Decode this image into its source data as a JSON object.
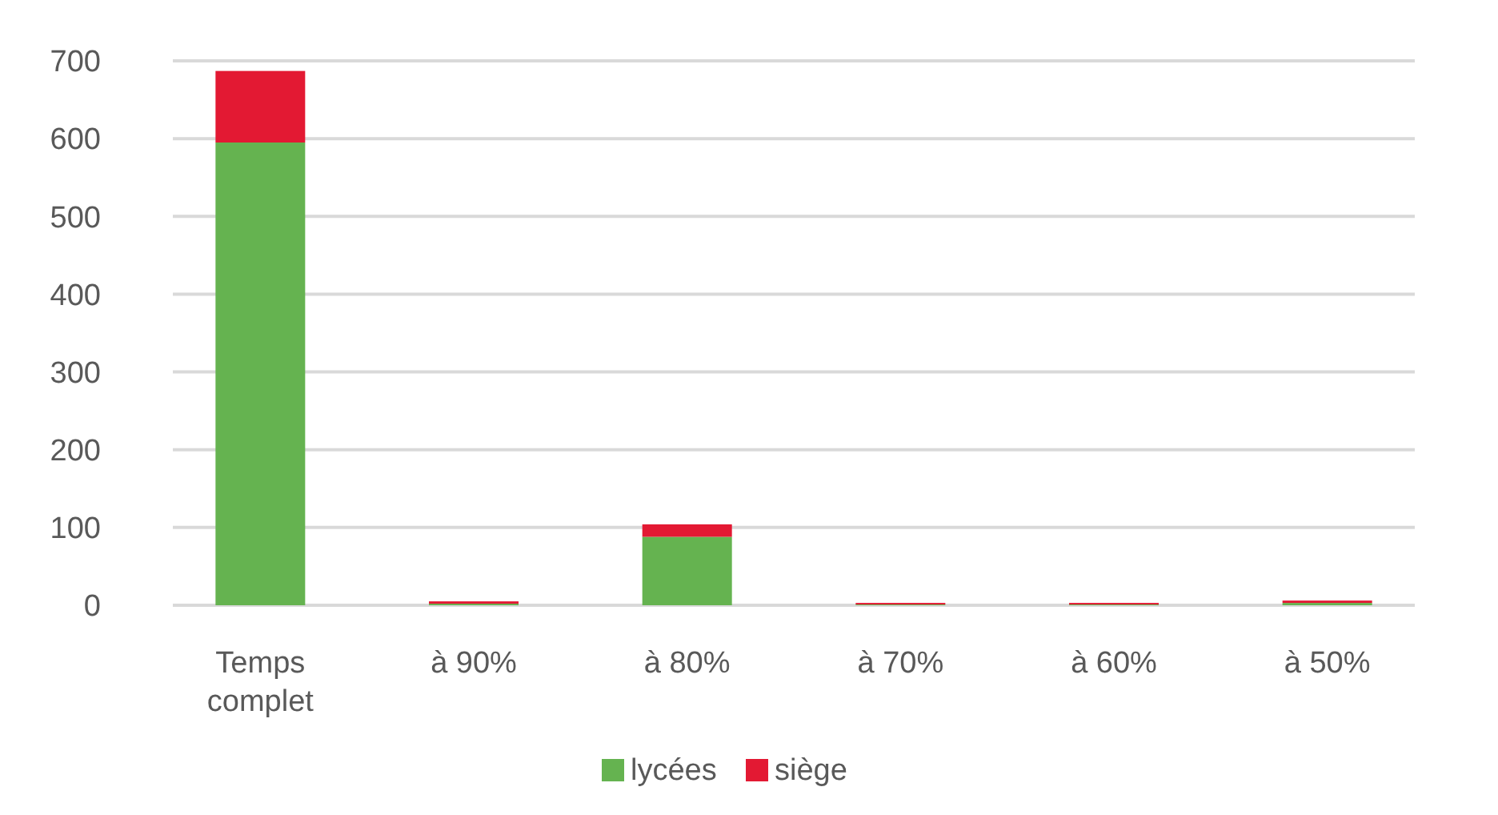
{
  "chart_data": {
    "type": "bar",
    "stacked": true,
    "categories": [
      "Temps complet",
      "à 90%",
      "à 80%",
      "à 70%",
      "à 60%",
      "à 50%"
    ],
    "series": [
      {
        "name": "lycées",
        "color": "#65b350",
        "values": [
          595,
          2,
          88,
          1,
          1,
          3
        ]
      },
      {
        "name": "siège",
        "color": "#e31933",
        "values": [
          92,
          3,
          16,
          2,
          2,
          3
        ]
      }
    ],
    "ylim": [
      0,
      700
    ],
    "yticks": [
      0,
      100,
      200,
      300,
      400,
      500,
      600,
      700
    ],
    "grid": "y",
    "legend": "bottom"
  }
}
